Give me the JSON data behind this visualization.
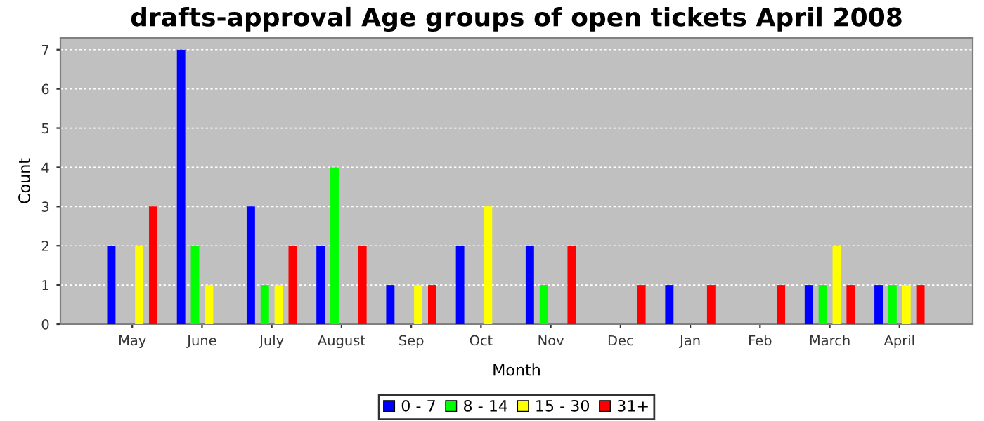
{
  "chart_data": {
    "type": "bar",
    "title": "drafts-approval Age groups of open tickets April 2008",
    "xlabel": "Month",
    "ylabel": "Count",
    "categories": [
      "May",
      "June",
      "July",
      "August",
      "Sep",
      "Oct",
      "Nov",
      "Dec",
      "Jan",
      "Feb",
      "March",
      "April"
    ],
    "series": [
      {
        "name": "0 - 7",
        "color": "#0000ff",
        "values": [
          2,
          7,
          3,
          2,
          1,
          2,
          2,
          0,
          1,
          0,
          1,
          1
        ]
      },
      {
        "name": "8 - 14",
        "color": "#00ff00",
        "values": [
          0,
          2,
          1,
          4,
          0,
          0,
          1,
          0,
          0,
          0,
          1,
          1
        ]
      },
      {
        "name": "15 - 30",
        "color": "#ffff00",
        "values": [
          2,
          1,
          1,
          0,
          1,
          3,
          0,
          0,
          0,
          0,
          2,
          1
        ]
      },
      {
        "name": "31+",
        "color": "#ff0000",
        "values": [
          3,
          0,
          2,
          2,
          1,
          0,
          2,
          1,
          1,
          1,
          1,
          1
        ]
      }
    ],
    "ylim": [
      0,
      7.3
    ],
    "yticks": [
      0,
      1,
      2,
      3,
      4,
      5,
      6,
      7
    ],
    "grid": true,
    "legend": "bottom"
  }
}
